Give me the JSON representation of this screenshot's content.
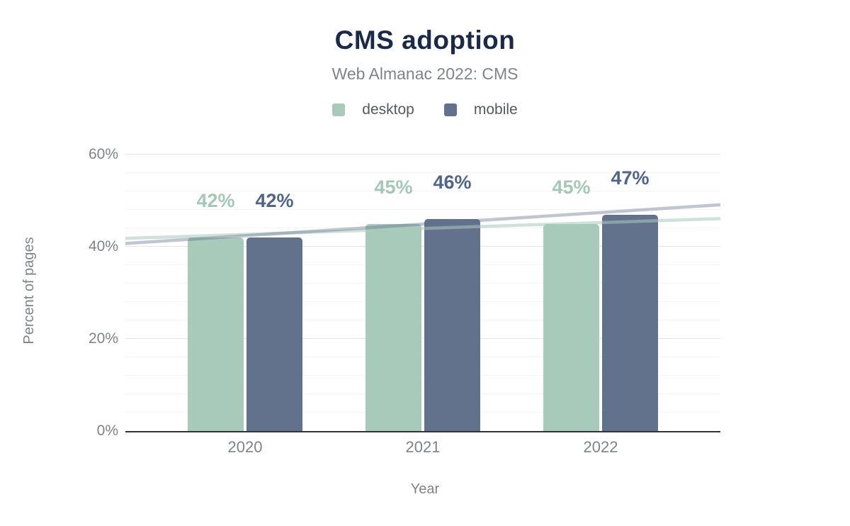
{
  "page": {
    "background": "#ffffff"
  },
  "colors": {
    "title_color": "#1b2a49",
    "subtitle_color": "#7f8487",
    "axis_text_color": "#7d8488",
    "legend_text_color": "#55595c",
    "axis_line_color": "#333333",
    "grid_major_color": "#e4e4e4",
    "grid_minor_color": "#f4f4f4"
  },
  "chart_data": {
    "type": "bar",
    "title": "CMS adoption",
    "subtitle": "Web Almanac 2022: CMS",
    "xlabel": "Year",
    "ylabel": "Percent of pages",
    "categories": [
      "2020",
      "2021",
      "2022"
    ],
    "series": [
      {
        "name": "desktop",
        "values": [
          42,
          45,
          45
        ],
        "color": "#a7cabb",
        "label_color": "#a4c8b8",
        "trendline": {
          "start_pct": 41.8,
          "end_pct": 46.1,
          "color": "rgba(167,202,187,0.55)"
        }
      },
      {
        "name": "mobile",
        "values": [
          42,
          46,
          47
        ],
        "color": "#62718c",
        "label_color": "#50658a",
        "trendline": {
          "start_pct": 40.7,
          "end_pct": 49.1,
          "color": "rgba(98,113,140,0.40)"
        }
      }
    ],
    "value_suffix": "%",
    "y_ticks": [
      0,
      20,
      40,
      60
    ],
    "ylim": [
      0,
      64
    ],
    "minor_grid_step": 4,
    "grid": true,
    "legend_position": "top"
  }
}
